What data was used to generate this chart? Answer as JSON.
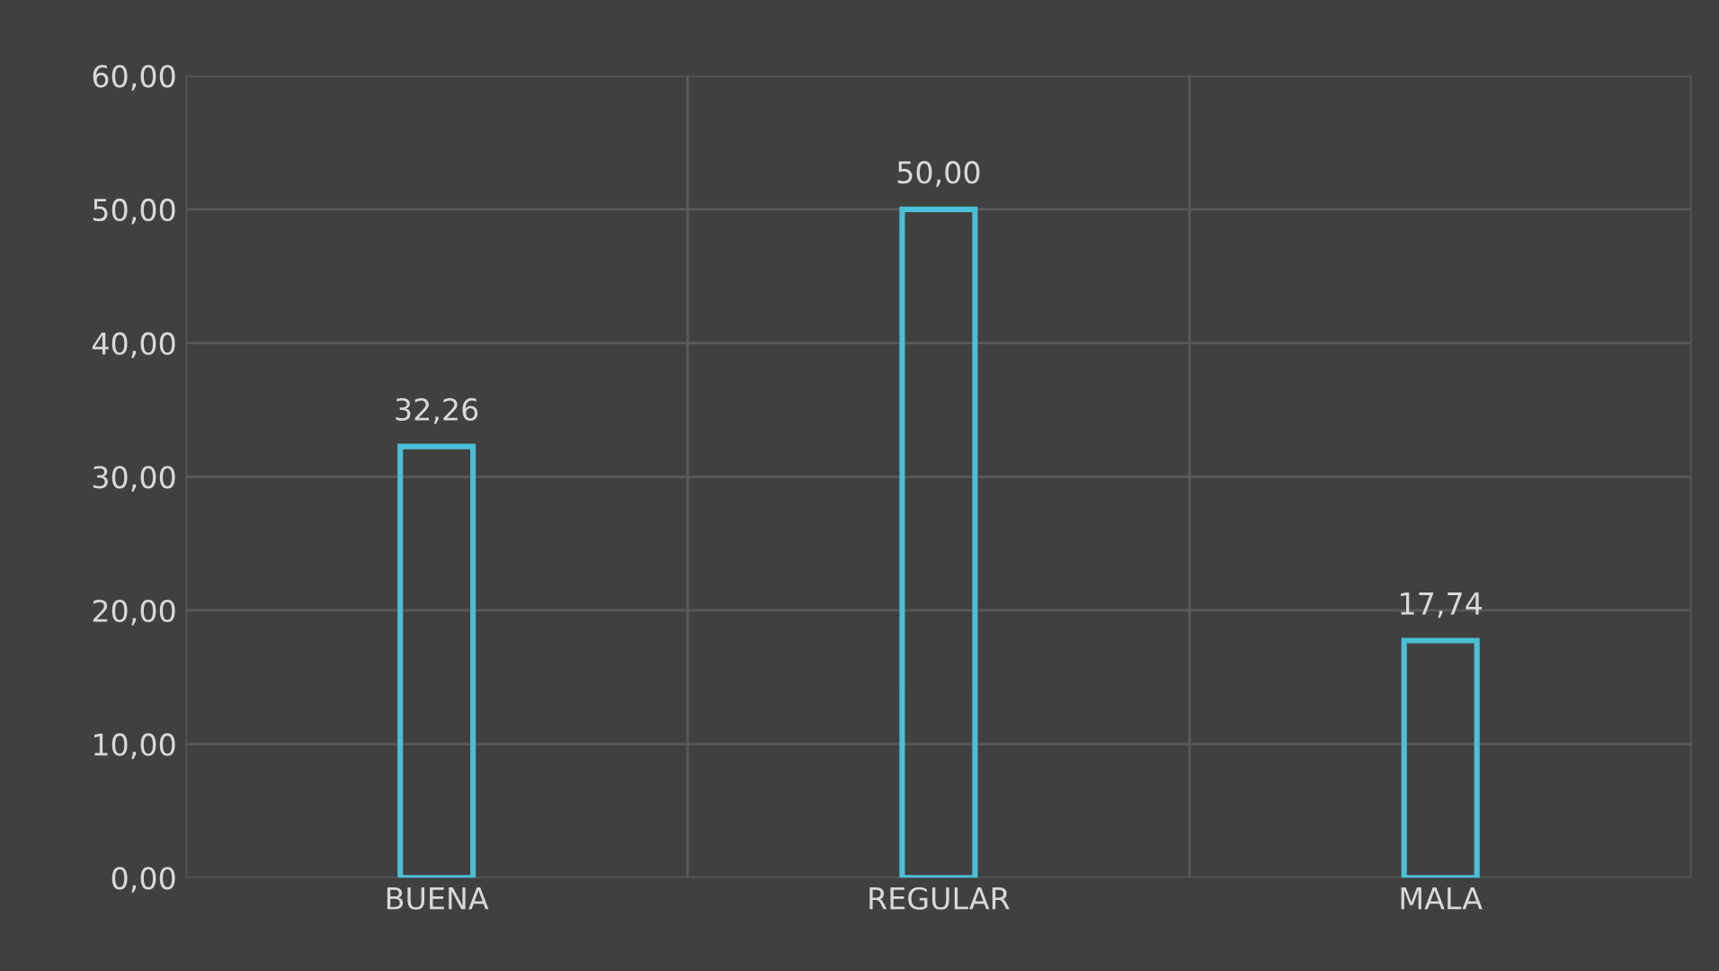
{
  "chart_data": {
    "type": "bar",
    "categories": [
      "BUENA",
      "REGULAR",
      "MALA"
    ],
    "values": [
      32.26,
      50.0,
      17.74
    ],
    "value_labels": [
      "32,26",
      "50,00",
      "17,74"
    ],
    "color": "#4bbfd6",
    "ylim": [
      0,
      60
    ],
    "yticks": [
      {
        "value": 0,
        "label": "0,00"
      },
      {
        "value": 10,
        "label": "10,00"
      },
      {
        "value": 20,
        "label": "20,00"
      },
      {
        "value": 30,
        "label": "30,00"
      },
      {
        "value": 40,
        "label": "40,00"
      },
      {
        "value": 50,
        "label": "50,00"
      },
      {
        "value": 60,
        "label": "60,00"
      }
    ],
    "grid": true,
    "legend": false
  }
}
